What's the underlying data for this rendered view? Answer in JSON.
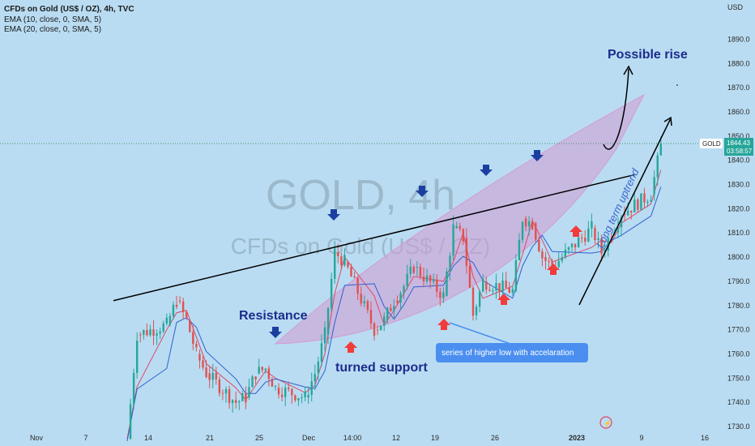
{
  "header": {
    "title": "CFDs on Gold (US$ / OZ), 4h, TVC",
    "indicators": [
      "EMA (10, close, 0, SMA, 5)",
      "EMA (20, close, 0, SMA, 5)"
    ]
  },
  "watermark": {
    "symbol": "GOLD, 4h",
    "description": "CFDs on Gold (US$ / OZ)"
  },
  "annotations": {
    "possible_rise": "Possible rise",
    "resistance": "Resistance",
    "turned_support": "turned support",
    "long_term": "Long term uptrend",
    "callout": "series of higher low with accelaration"
  },
  "price_badge": {
    "symbol": "GOLD",
    "price": "1844.43",
    "timer": "03:58:57"
  },
  "colors": {
    "background": "#b9dcf2",
    "up_candle": "#26a69a",
    "down_candle": "#e0524f",
    "ema10": "#e0476a",
    "ema20": "#2f5fd0",
    "channel_fill": "#d49ad2",
    "arrow_down": "#1b3fa0",
    "arrow_up": "#f23b3b",
    "callout_bg": "#4a8ff0"
  },
  "chart_data": {
    "type": "candlestick",
    "currency_label": "USD",
    "y_ticks": [
      1730,
      1740,
      1750,
      1760,
      1770,
      1780,
      1790,
      1800,
      1810,
      1820,
      1830,
      1840,
      1850,
      1860,
      1870,
      1880,
      1890
    ],
    "ylim": [
      1727,
      1898
    ],
    "x_tick_labels": [
      "Nov",
      "7",
      "14",
      "21",
      "25",
      "Dec",
      "14:00",
      "12",
      "19",
      "26",
      "2023",
      "9",
      "16"
    ],
    "last_price": 1844.43,
    "close_path": [
      {
        "date": "2022-11-10",
        "close": 1725
      },
      {
        "date": "2022-11-11",
        "close": 1768
      },
      {
        "date": "2022-11-14",
        "close": 1772
      },
      {
        "date": "2022-11-15",
        "close": 1782
      },
      {
        "date": "2022-11-16",
        "close": 1774
      },
      {
        "date": "2022-11-17",
        "close": 1760
      },
      {
        "date": "2022-11-18",
        "close": 1752
      },
      {
        "date": "2022-11-21",
        "close": 1740
      },
      {
        "date": "2022-11-22",
        "close": 1742
      },
      {
        "date": "2022-11-23",
        "close": 1752
      },
      {
        "date": "2022-11-24",
        "close": 1754
      },
      {
        "date": "2022-11-25",
        "close": 1746
      },
      {
        "date": "2022-11-28",
        "close": 1742
      },
      {
        "date": "2022-11-29",
        "close": 1752
      },
      {
        "date": "2022-11-30",
        "close": 1768
      },
      {
        "date": "2022-12-01",
        "close": 1802
      },
      {
        "date": "2022-12-02",
        "close": 1798
      },
      {
        "date": "2022-12-05",
        "close": 1770
      },
      {
        "date": "2022-12-06",
        "close": 1774
      },
      {
        "date": "2022-12-07",
        "close": 1782
      },
      {
        "date": "2022-12-08",
        "close": 1788
      },
      {
        "date": "2022-12-09",
        "close": 1796
      },
      {
        "date": "2022-12-12",
        "close": 1784
      },
      {
        "date": "2022-12-13",
        "close": 1812
      },
      {
        "date": "2022-12-14",
        "close": 1808
      },
      {
        "date": "2022-12-15",
        "close": 1776
      },
      {
        "date": "2022-12-16",
        "close": 1790
      },
      {
        "date": "2022-12-19",
        "close": 1786
      },
      {
        "date": "2022-12-20",
        "close": 1816
      },
      {
        "date": "2022-12-21",
        "close": 1814
      },
      {
        "date": "2022-12-22",
        "close": 1800
      },
      {
        "date": "2022-12-23",
        "close": 1796
      },
      {
        "date": "2022-12-27",
        "close": 1812
      },
      {
        "date": "2022-12-28",
        "close": 1802
      },
      {
        "date": "2022-12-29",
        "close": 1810
      },
      {
        "date": "2022-12-30",
        "close": 1818
      },
      {
        "date": "2023-01-02",
        "close": 1826
      },
      {
        "date": "2023-01-03",
        "close": 1846
      }
    ],
    "support_trendline": [
      {
        "date": "2022-11-10",
        "price": 1782
      },
      {
        "date": "2023-01-06",
        "price": 1834
      }
    ],
    "support_lows": [
      {
        "date": "2022-12-02",
        "price": 1765
      },
      {
        "date": "2022-12-16",
        "price": 1774
      },
      {
        "date": "2022-12-23",
        "price": 1790
      },
      {
        "date": "2022-12-28",
        "price": 1799
      },
      {
        "date": "2023-01-02",
        "price": 1812
      }
    ],
    "lower_highs_tests": [
      {
        "date": "2022-11-25",
        "price": 1767
      },
      {
        "date": "2022-12-05",
        "price": 1813
      },
      {
        "date": "2022-12-13",
        "price": 1822
      },
      {
        "date": "2022-12-20",
        "price": 1831
      },
      {
        "date": "2022-12-27",
        "price": 1835
      }
    ],
    "ema10_color": "#e0476a",
    "ema20_color": "#2f5fd0"
  }
}
